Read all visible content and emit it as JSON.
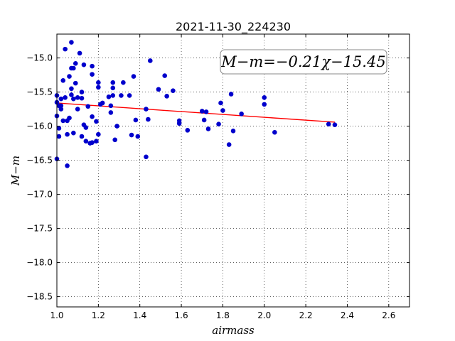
{
  "chart_data": {
    "type": "scatter",
    "title": "2021-11-30_224230",
    "xlabel": "airmass",
    "ylabel": "M−m",
    "xlim": [
      1.0,
      2.7
    ],
    "ylim": [
      -18.65,
      -14.65
    ],
    "y_inverted": true,
    "grid": true,
    "x_ticks": [
      "1.0",
      "1.2",
      "1.4",
      "1.6",
      "1.8",
      "2.0",
      "2.2",
      "2.4",
      "2.6"
    ],
    "y_ticks": [
      "−15.0",
      "−15.5",
      "−16.0",
      "−16.5",
      "−17.0",
      "−17.5",
      "−18.0",
      "−18.5"
    ],
    "annotation": "M−m=−0.21χ−15.45",
    "fit_line": {
      "slope": -0.21,
      "intercept": -15.45,
      "x_range": [
        1.0,
        2.34
      ],
      "color": "#ff0000"
    },
    "point_color": "#0000cc",
    "points": [
      [
        1.0,
        -15.85
      ],
      [
        1.0,
        -15.65
      ],
      [
        1.0,
        -15.55
      ],
      [
        1.01,
        -16.15
      ],
      [
        1.01,
        -16.03
      ],
      [
        1.0,
        -16.48
      ],
      [
        1.01,
        -15.7
      ],
      [
        1.02,
        -15.7
      ],
      [
        1.02,
        -15.6
      ],
      [
        1.02,
        -15.75
      ],
      [
        1.03,
        -15.33
      ],
      [
        1.03,
        -15.92
      ],
      [
        1.04,
        -15.58
      ],
      [
        1.04,
        -14.87
      ],
      [
        1.05,
        -16.58
      ],
      [
        1.05,
        -16.12
      ],
      [
        1.05,
        -15.92
      ],
      [
        1.06,
        -15.88
      ],
      [
        1.06,
        -15.27
      ],
      [
        1.07,
        -15.15
      ],
      [
        1.07,
        -15.45
      ],
      [
        1.07,
        -15.54
      ],
      [
        1.07,
        -14.77
      ],
      [
        1.08,
        -15.15
      ],
      [
        1.08,
        -15.6
      ],
      [
        1.08,
        -16.1
      ],
      [
        1.09,
        -15.37
      ],
      [
        1.09,
        -15.08
      ],
      [
        1.1,
        -15.75
      ],
      [
        1.1,
        -15.58
      ],
      [
        1.11,
        -14.93
      ],
      [
        1.12,
        -16.15
      ],
      [
        1.12,
        -15.5
      ],
      [
        1.12,
        -15.59
      ],
      [
        1.13,
        -15.1
      ],
      [
        1.13,
        -15.98
      ],
      [
        1.14,
        -16.02
      ],
      [
        1.14,
        -16.22
      ],
      [
        1.15,
        -15.71
      ],
      [
        1.16,
        -16.25
      ],
      [
        1.17,
        -16.24
      ],
      [
        1.17,
        -15.12
      ],
      [
        1.17,
        -15.24
      ],
      [
        1.17,
        -15.86
      ],
      [
        1.19,
        -16.22
      ],
      [
        1.19,
        -15.93
      ],
      [
        1.2,
        -16.12
      ],
      [
        1.2,
        -15.43
      ],
      [
        1.2,
        -15.36
      ],
      [
        1.21,
        -15.68
      ],
      [
        1.22,
        -15.66
      ],
      [
        1.25,
        -15.57
      ],
      [
        1.26,
        -15.8
      ],
      [
        1.26,
        -15.7
      ],
      [
        1.27,
        -15.44
      ],
      [
        1.27,
        -15.36
      ],
      [
        1.27,
        -15.55
      ],
      [
        1.28,
        -16.2
      ],
      [
        1.29,
        -16.0
      ],
      [
        1.31,
        -15.55
      ],
      [
        1.32,
        -15.36
      ],
      [
        1.35,
        -15.55
      ],
      [
        1.36,
        -16.13
      ],
      [
        1.37,
        -15.27
      ],
      [
        1.38,
        -15.91
      ],
      [
        1.39,
        -16.15
      ],
      [
        1.43,
        -15.75
      ],
      [
        1.43,
        -16.45
      ],
      [
        1.44,
        -15.9
      ],
      [
        1.45,
        -15.04
      ],
      [
        1.49,
        -15.46
      ],
      [
        1.52,
        -15.26
      ],
      [
        1.53,
        -15.56
      ],
      [
        1.56,
        -15.48
      ],
      [
        1.59,
        -15.96
      ],
      [
        1.59,
        -15.92
      ],
      [
        1.63,
        -16.06
      ],
      [
        1.7,
        -15.78
      ],
      [
        1.71,
        -15.91
      ],
      [
        1.72,
        -15.79
      ],
      [
        1.73,
        -16.04
      ],
      [
        1.78,
        -15.97
      ],
      [
        1.79,
        -15.66
      ],
      [
        1.8,
        -15.77
      ],
      [
        1.83,
        -16.27
      ],
      [
        1.84,
        -15.53
      ],
      [
        1.85,
        -16.07
      ],
      [
        1.89,
        -15.82
      ],
      [
        2.0,
        -15.58
      ],
      [
        2.0,
        -15.68
      ],
      [
        2.05,
        -16.09
      ],
      [
        2.31,
        -15.97
      ],
      [
        2.34,
        -15.98
      ]
    ]
  }
}
